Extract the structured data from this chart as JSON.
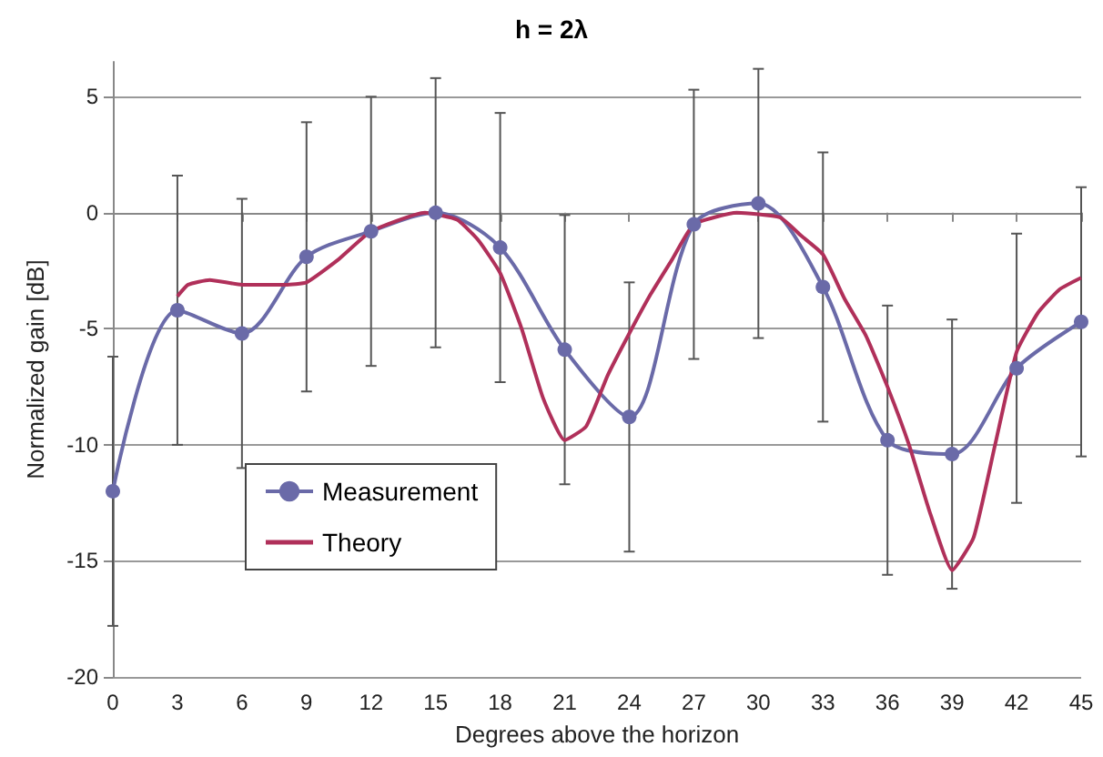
{
  "chart_data": {
    "type": "line",
    "title": "h = 2λ",
    "xlabel": "Degrees above the horizon",
    "ylabel": "Normalized gain [dB]",
    "xlim": [
      0,
      45
    ],
    "xticks": [
      0,
      3,
      6,
      9,
      12,
      15,
      18,
      21,
      24,
      27,
      30,
      33,
      36,
      39,
      42,
      45
    ],
    "ylim": [
      -20,
      6.5
    ],
    "yticks": [
      -20,
      -15,
      -10,
      -5,
      0,
      5
    ],
    "grid": "y",
    "legend": "left",
    "series": [
      {
        "name": "Measurement",
        "color": "#6a6aa8",
        "marker": "circle",
        "x": [
          0,
          3,
          6,
          9,
          12,
          15,
          18,
          21,
          24,
          27,
          30,
          33,
          36,
          39,
          42,
          45
        ],
        "values": [
          -12,
          -4.2,
          -5.2,
          -1.9,
          -0.8,
          0,
          -1.5,
          -5.9,
          -8.8,
          -0.5,
          0.4,
          -3.2,
          -9.8,
          -10.4,
          -6.7,
          -4.7
        ],
        "errors": [
          5.8,
          5.8,
          5.8,
          5.8,
          5.8,
          5.8,
          5.8,
          5.8,
          5.8,
          5.8,
          5.8,
          5.8,
          5.8,
          5.8,
          5.8,
          5.8
        ]
      },
      {
        "name": "Theory",
        "color": "#b0305a",
        "marker": "none",
        "x": [
          3,
          3.5,
          4.5,
          6,
          8,
          9,
          10.5,
          12,
          14.5,
          16,
          17,
          18,
          19,
          20,
          21,
          22,
          23,
          24,
          25,
          26,
          27,
          29,
          31,
          32,
          33,
          34,
          35,
          36,
          37,
          38,
          39,
          40,
          41,
          42,
          43,
          44,
          45
        ],
        "values": [
          -3.6,
          -3.1,
          -2.9,
          -3.1,
          -3.1,
          -3,
          -2,
          -0.8,
          0,
          -0.3,
          -1.2,
          -2.6,
          -5,
          -8,
          -9.8,
          -9.2,
          -7,
          -5.2,
          -3.5,
          -2,
          -0.5,
          0,
          -0.2,
          -1,
          -1.8,
          -3.7,
          -5.3,
          -7.5,
          -10,
          -13,
          -15.4,
          -14,
          -10,
          -6,
          -4.3,
          -3.3,
          -2.8
        ]
      }
    ]
  }
}
